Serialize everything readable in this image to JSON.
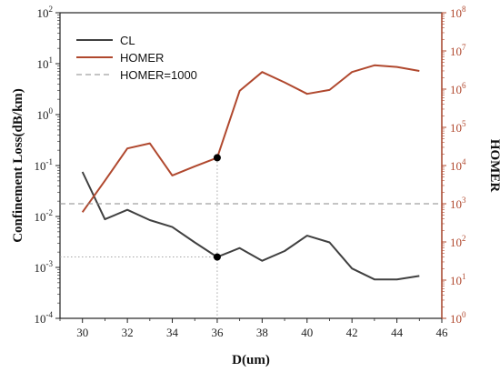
{
  "chart_data": {
    "type": "line",
    "xlabel": "D(um)",
    "ylabel": "Confinement Loss(dB/km)",
    "y2label": "HOMER",
    "xlim": [
      29,
      46
    ],
    "xticks": [
      30,
      32,
      34,
      36,
      38,
      40,
      42,
      44,
      46
    ],
    "ylim": [
      0.0001,
      100
    ],
    "yscale": "log",
    "yticks": [
      {
        "v": 0.0001,
        "base": "10",
        "exp": "-4"
      },
      {
        "v": 0.001,
        "base": "10",
        "exp": "-3"
      },
      {
        "v": 0.01,
        "base": "10",
        "exp": "-2"
      },
      {
        "v": 0.1,
        "base": "10",
        "exp": "-1"
      },
      {
        "v": 1,
        "base": "10",
        "exp": "0"
      },
      {
        "v": 10,
        "base": "10",
        "exp": "1"
      },
      {
        "v": 100,
        "base": "10",
        "exp": "2"
      }
    ],
    "y2lim": [
      1,
      100000000
    ],
    "y2scale": "log",
    "y2ticks": [
      {
        "v": 1,
        "base": "10",
        "exp": "0"
      },
      {
        "v": 10,
        "base": "10",
        "exp": "1"
      },
      {
        "v": 100,
        "base": "10",
        "exp": "2"
      },
      {
        "v": 1000,
        "base": "10",
        "exp": "3"
      },
      {
        "v": 10000,
        "base": "10",
        "exp": "4"
      },
      {
        "v": 100000,
        "base": "10",
        "exp": "5"
      },
      {
        "v": 1000000,
        "base": "10",
        "exp": "6"
      },
      {
        "v": 10000000,
        "base": "10",
        "exp": "7"
      },
      {
        "v": 100000000,
        "base": "10",
        "exp": "8"
      }
    ],
    "series": [
      {
        "name": "CL",
        "axis": "left",
        "color": "#404040",
        "x": [
          30,
          31,
          32,
          33,
          34,
          35,
          36,
          37,
          38,
          39,
          40,
          41,
          42,
          43,
          44,
          45
        ],
        "y": [
          0.075,
          0.0088,
          0.0135,
          0.0085,
          0.0062,
          0.0031,
          0.0016,
          0.0024,
          0.00135,
          0.0021,
          0.0042,
          0.0031,
          0.00095,
          0.00058,
          0.00058,
          0.00068
        ]
      },
      {
        "name": "HOMER",
        "axis": "right",
        "color": "#b0482e",
        "x": [
          30,
          31,
          32,
          33,
          34,
          35,
          36,
          37,
          38,
          39,
          40,
          41,
          42,
          43,
          44,
          45
        ],
        "y": [
          600,
          4000,
          28000,
          38000,
          5500,
          9500,
          16000,
          900000,
          2800000,
          1500000,
          750000,
          950000,
          2800000,
          4200000,
          3800000,
          3000000
        ]
      },
      {
        "name": "HOMER=1000",
        "axis": "right",
        "color": "#888888",
        "style": "dashed",
        "y": 1000
      }
    ],
    "marker": {
      "x": 36,
      "cl": 0.0016,
      "homer": 16000
    },
    "legend": "top-left",
    "grid": false
  }
}
